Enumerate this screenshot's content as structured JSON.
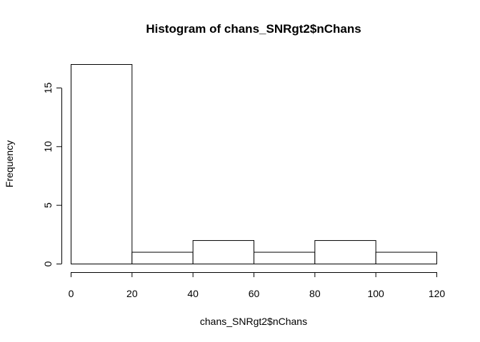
{
  "chart_data": {
    "type": "bar",
    "title": "Histogram of chans_SNRgt2$nChans",
    "xlabel": "chans_SNRgt2$nChans",
    "ylabel": "Frequency",
    "bins": [
      {
        "start": 0,
        "end": 20,
        "count": 17
      },
      {
        "start": 20,
        "end": 40,
        "count": 1
      },
      {
        "start": 40,
        "end": 60,
        "count": 2
      },
      {
        "start": 60,
        "end": 80,
        "count": 1
      },
      {
        "start": 80,
        "end": 100,
        "count": 2
      },
      {
        "start": 100,
        "end": 120,
        "count": 1
      }
    ],
    "xlim": [
      0,
      120
    ],
    "ylim": [
      0,
      17
    ],
    "x_ticks": [
      0,
      20,
      40,
      60,
      80,
      100,
      120
    ],
    "y_ticks": [
      0,
      5,
      10,
      15
    ],
    "grid": false,
    "legend": false
  }
}
